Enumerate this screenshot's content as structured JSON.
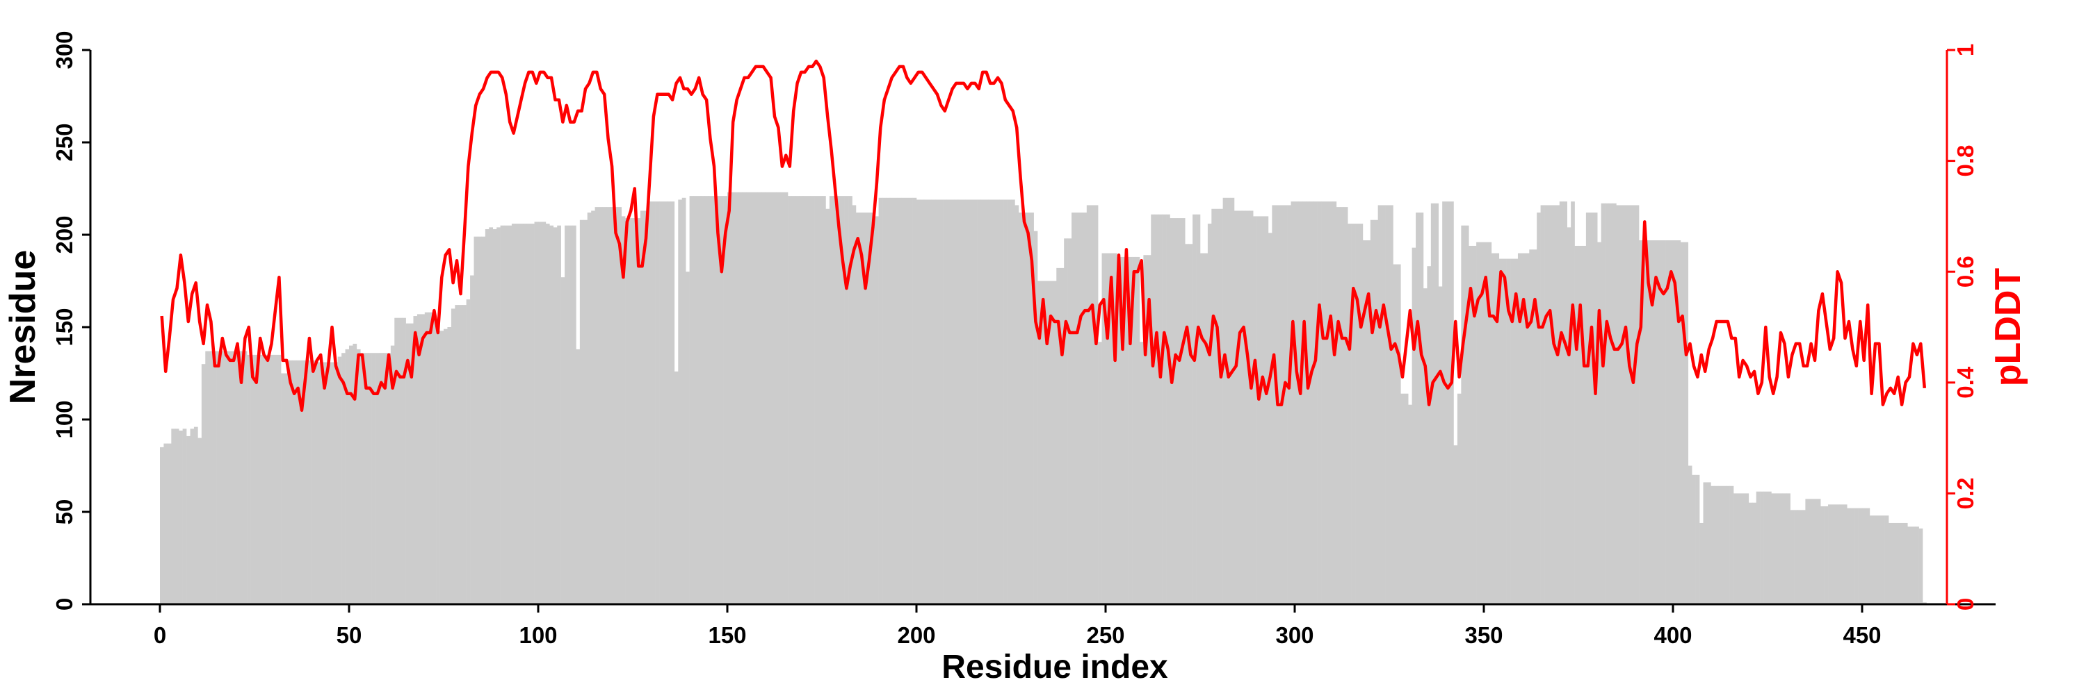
{
  "chart_data": {
    "type": "bar+line",
    "xlabel": "Residue index",
    "ylabel": "Nresidue",
    "y2label": "pLDDT",
    "xlim": [
      -18,
      485
    ],
    "ylim": [
      0,
      300
    ],
    "y2lim": [
      0,
      1
    ],
    "x_ticks": [
      "0",
      "50",
      "100",
      "150",
      "200",
      "250",
      "300",
      "350",
      "400",
      "450"
    ],
    "y_ticks": [
      "0",
      "50",
      "100",
      "150",
      "200",
      "250",
      "300"
    ],
    "y2_ticks": [
      "0",
      "0.2",
      "0.4",
      "0.6",
      "0.8",
      "1"
    ],
    "grid": false,
    "colors": {
      "bars": "#cccccc",
      "line": "#ff0000",
      "axis": "#000000",
      "y2axis": "#ff0000"
    },
    "series": [
      {
        "name": "Nresidue",
        "type": "bar",
        "x_start": 0,
        "x_step": 1,
        "values": [
          85,
          87,
          87,
          95,
          95,
          94,
          95,
          91,
          95,
          96,
          90,
          130,
          137,
          137,
          137,
          137,
          137,
          137,
          137,
          137,
          137,
          137,
          137,
          135,
          135,
          135,
          135,
          135,
          135,
          135,
          135,
          135,
          125,
          125,
          132,
          132,
          132,
          132,
          132,
          132,
          132,
          131,
          131,
          131,
          131,
          131,
          131,
          134,
          136,
          138,
          140,
          141,
          138,
          136,
          136,
          136,
          136,
          136,
          136,
          136,
          136,
          140,
          155,
          155,
          155,
          152,
          152,
          156,
          157,
          157,
          158,
          158,
          157,
          148,
          148,
          149,
          150,
          160,
          162,
          162,
          162,
          165,
          178,
          199,
          199,
          199,
          203,
          204,
          203,
          204,
          205,
          205,
          205,
          206,
          206,
          206,
          206,
          206,
          206,
          207,
          207,
          207,
          206,
          205,
          204,
          205,
          177,
          205,
          205,
          205,
          138,
          208,
          208,
          212,
          213,
          215,
          215,
          215,
          215,
          215,
          215,
          215,
          210,
          209,
          209,
          209,
          209,
          213,
          213,
          218,
          218,
          218,
          218,
          218,
          218,
          218,
          126,
          219,
          220,
          180,
          221,
          221,
          221,
          221,
          221,
          221,
          221,
          221,
          221,
          221,
          223,
          223,
          223,
          223,
          223,
          223,
          223,
          223,
          223,
          223,
          223,
          223,
          223,
          223,
          223,
          223,
          221,
          221,
          221,
          221,
          221,
          221,
          221,
          221,
          221,
          221,
          214,
          221,
          221,
          221,
          221,
          221,
          221,
          216,
          212,
          212,
          212,
          212,
          212,
          210,
          220,
          220,
          220,
          220,
          220,
          220,
          220,
          220,
          220,
          220,
          219,
          219,
          219,
          219,
          219,
          219,
          219,
          219,
          219,
          219,
          219,
          219,
          219,
          219,
          219,
          219,
          219,
          219,
          219,
          219,
          219,
          219,
          219,
          219,
          219,
          219,
          216,
          212,
          212,
          212,
          212,
          202,
          175,
          175,
          175,
          175,
          175,
          182,
          182,
          198,
          198,
          212,
          212,
          212,
          212,
          216,
          216,
          216,
          142,
          190,
          190,
          190,
          190,
          188,
          188,
          188,
          188,
          188,
          188,
          142,
          189,
          189,
          211,
          211,
          211,
          211,
          211,
          209,
          209,
          209,
          209,
          195,
          195,
          211,
          211,
          190,
          190,
          206,
          214,
          214,
          214,
          220,
          220,
          220,
          213,
          213,
          213,
          213,
          213,
          210,
          210,
          210,
          210,
          201,
          216,
          216,
          216,
          216,
          216,
          218,
          218,
          218,
          218,
          218,
          218,
          218,
          218,
          218,
          218,
          218,
          218,
          215,
          215,
          215,
          206,
          206,
          206,
          206,
          197,
          197,
          208,
          208,
          216,
          216,
          216,
          216,
          184,
          184,
          114,
          114,
          108,
          193,
          212,
          212,
          171,
          183,
          217,
          217,
          172,
          218,
          218,
          218,
          86,
          114,
          205,
          205,
          194,
          194,
          196,
          196,
          196,
          196,
          190,
          190,
          187,
          187,
          187,
          187,
          187,
          190,
          190,
          190,
          192,
          192,
          212,
          216,
          216,
          216,
          216,
          216,
          218,
          218,
          204,
          218,
          194,
          194,
          194,
          212,
          212,
          212,
          196,
          217,
          217,
          217,
          217,
          216,
          216,
          216,
          216,
          216,
          216,
          197,
          197,
          197,
          197,
          197,
          197,
          197,
          197,
          197,
          197,
          197,
          196,
          196,
          75,
          70,
          70,
          44,
          66,
          66,
          64,
          64,
          64,
          64,
          64,
          64,
          60,
          60,
          60,
          60,
          55,
          55,
          61,
          61,
          61,
          61,
          60,
          60,
          60,
          60,
          60,
          51,
          51,
          51,
          51,
          57,
          57,
          57,
          57,
          53,
          53,
          54,
          54,
          54,
          54,
          54,
          52,
          52,
          52,
          52,
          52,
          52,
          48,
          48,
          48,
          48,
          48,
          44,
          44,
          44,
          44,
          44,
          42,
          42,
          42,
          41,
          1
        ]
      },
      {
        "name": "pLDDT",
        "type": "line",
        "axis": "right",
        "x_start": 0,
        "x_step": 1,
        "values": [
          0.52,
          0.42,
          0.48,
          0.55,
          0.57,
          0.63,
          0.58,
          0.51,
          0.56,
          0.58,
          0.51,
          0.47,
          0.54,
          0.51,
          0.43,
          0.43,
          0.48,
          0.45,
          0.44,
          0.44,
          0.47,
          0.4,
          0.48,
          0.5,
          0.41,
          0.4,
          0.48,
          0.45,
          0.44,
          0.47,
          0.53,
          0.59,
          0.44,
          0.44,
          0.4,
          0.38,
          0.39,
          0.35,
          0.41,
          0.48,
          0.42,
          0.44,
          0.45,
          0.39,
          0.43,
          0.5,
          0.43,
          0.41,
          0.4,
          0.38,
          0.38,
          0.37,
          0.45,
          0.45,
          0.39,
          0.39,
          0.38,
          0.38,
          0.4,
          0.39,
          0.45,
          0.39,
          0.42,
          0.41,
          0.41,
          0.44,
          0.41,
          0.49,
          0.45,
          0.48,
          0.49,
          0.49,
          0.53,
          0.49,
          0.59,
          0.63,
          0.64,
          0.58,
          0.62,
          0.56,
          0.67,
          0.79,
          0.85,
          0.9,
          0.92,
          0.93,
          0.95,
          0.96,
          0.96,
          0.96,
          0.95,
          0.92,
          0.87,
          0.85,
          0.88,
          0.91,
          0.94,
          0.96,
          0.96,
          0.94,
          0.96,
          0.96,
          0.95,
          0.95,
          0.91,
          0.91,
          0.87,
          0.9,
          0.87,
          0.87,
          0.89,
          0.89,
          0.93,
          0.94,
          0.96,
          0.96,
          0.93,
          0.92,
          0.84,
          0.79,
          0.67,
          0.65,
          0.59,
          0.69,
          0.71,
          0.75,
          0.61,
          0.61,
          0.66,
          0.77,
          0.88,
          0.92,
          0.92,
          0.92,
          0.92,
          0.91,
          0.94,
          0.95,
          0.93,
          0.93,
          0.92,
          0.93,
          0.95,
          0.92,
          0.91,
          0.84,
          0.79,
          0.67,
          0.6,
          0.67,
          0.71,
          0.87,
          0.91,
          0.93,
          0.95,
          0.95,
          0.96,
          0.97,
          0.97,
          0.97,
          0.96,
          0.95,
          0.88,
          0.86,
          0.79,
          0.81,
          0.79,
          0.89,
          0.94,
          0.96,
          0.96,
          0.97,
          0.97,
          0.98,
          0.97,
          0.95,
          0.88,
          0.82,
          0.75,
          0.68,
          0.62,
          0.57,
          0.61,
          0.64,
          0.66,
          0.63,
          0.57,
          0.62,
          0.68,
          0.76,
          0.86,
          0.91,
          0.93,
          0.95,
          0.96,
          0.97,
          0.97,
          0.95,
          0.94,
          0.95,
          0.96,
          0.96,
          0.95,
          0.94,
          0.93,
          0.92,
          0.9,
          0.89,
          0.91,
          0.93,
          0.94,
          0.94,
          0.94,
          0.93,
          0.94,
          0.94,
          0.93,
          0.96,
          0.96,
          0.94,
          0.94,
          0.95,
          0.94,
          0.91,
          0.9,
          0.89,
          0.86,
          0.77,
          0.69,
          0.67,
          0.62,
          0.51,
          0.48,
          0.55,
          0.47,
          0.52,
          0.51,
          0.51,
          0.45,
          0.51,
          0.49,
          0.49,
          0.49,
          0.52,
          0.53,
          0.53,
          0.54,
          0.47,
          0.54,
          0.55,
          0.48,
          0.59,
          0.44,
          0.63,
          0.46,
          0.64,
          0.47,
          0.6,
          0.6,
          0.62,
          0.45,
          0.55,
          0.43,
          0.49,
          0.41,
          0.49,
          0.46,
          0.4,
          0.45,
          0.44,
          0.47,
          0.5,
          0.45,
          0.44,
          0.5,
          0.48,
          0.47,
          0.45,
          0.52,
          0.5,
          0.41,
          0.45,
          0.41,
          0.42,
          0.43,
          0.49,
          0.5,
          0.45,
          0.39,
          0.44,
          0.37,
          0.41,
          0.38,
          0.41,
          0.45,
          0.36,
          0.36,
          0.4,
          0.39,
          0.51,
          0.42,
          0.38,
          0.51,
          0.39,
          0.42,
          0.44,
          0.54,
          0.48,
          0.48,
          0.52,
          0.45,
          0.51,
          0.48,
          0.48,
          0.46,
          0.57,
          0.55,
          0.5,
          0.53,
          0.56,
          0.49,
          0.53,
          0.5,
          0.54,
          0.5,
          0.46,
          0.47,
          0.45,
          0.41,
          0.47,
          0.53,
          0.46,
          0.51,
          0.45,
          0.43,
          0.36,
          0.4,
          0.41,
          0.42,
          0.4,
          0.39,
          0.4,
          0.51,
          0.41,
          0.47,
          0.52,
          0.57,
          0.52,
          0.55,
          0.56,
          0.59,
          0.52,
          0.52,
          0.51,
          0.6,
          0.59,
          0.53,
          0.51,
          0.56,
          0.51,
          0.55,
          0.5,
          0.51,
          0.55,
          0.5,
          0.5,
          0.52,
          0.53,
          0.47,
          0.45,
          0.49,
          0.47,
          0.45,
          0.54,
          0.46,
          0.54,
          0.43,
          0.43,
          0.5,
          0.38,
          0.53,
          0.43,
          0.51,
          0.48,
          0.46,
          0.46,
          0.47,
          0.5,
          0.43,
          0.4,
          0.47,
          0.5,
          0.69,
          0.58,
          0.54,
          0.59,
          0.57,
          0.56,
          0.57,
          0.6,
          0.58,
          0.51,
          0.52,
          0.45,
          0.47,
          0.43,
          0.41,
          0.45,
          0.42,
          0.46,
          0.48,
          0.51,
          0.51,
          0.51,
          0.51,
          0.48,
          0.48,
          0.41,
          0.44,
          0.43,
          0.41,
          0.42,
          0.38,
          0.4,
          0.5,
          0.41,
          0.38,
          0.41,
          0.49,
          0.47,
          0.41,
          0.45,
          0.47,
          0.47,
          0.43,
          0.43,
          0.47,
          0.44,
          0.53,
          0.56,
          0.51,
          0.46,
          0.48,
          0.6,
          0.58,
          0.48,
          0.51,
          0.46,
          0.43,
          0.51,
          0.44,
          0.54,
          0.38,
          0.47,
          0.47,
          0.36,
          0.38,
          0.39,
          0.38,
          0.41,
          0.36,
          0.4,
          0.41,
          0.47,
          0.45,
          0.47,
          0.39
        ]
      }
    ]
  }
}
